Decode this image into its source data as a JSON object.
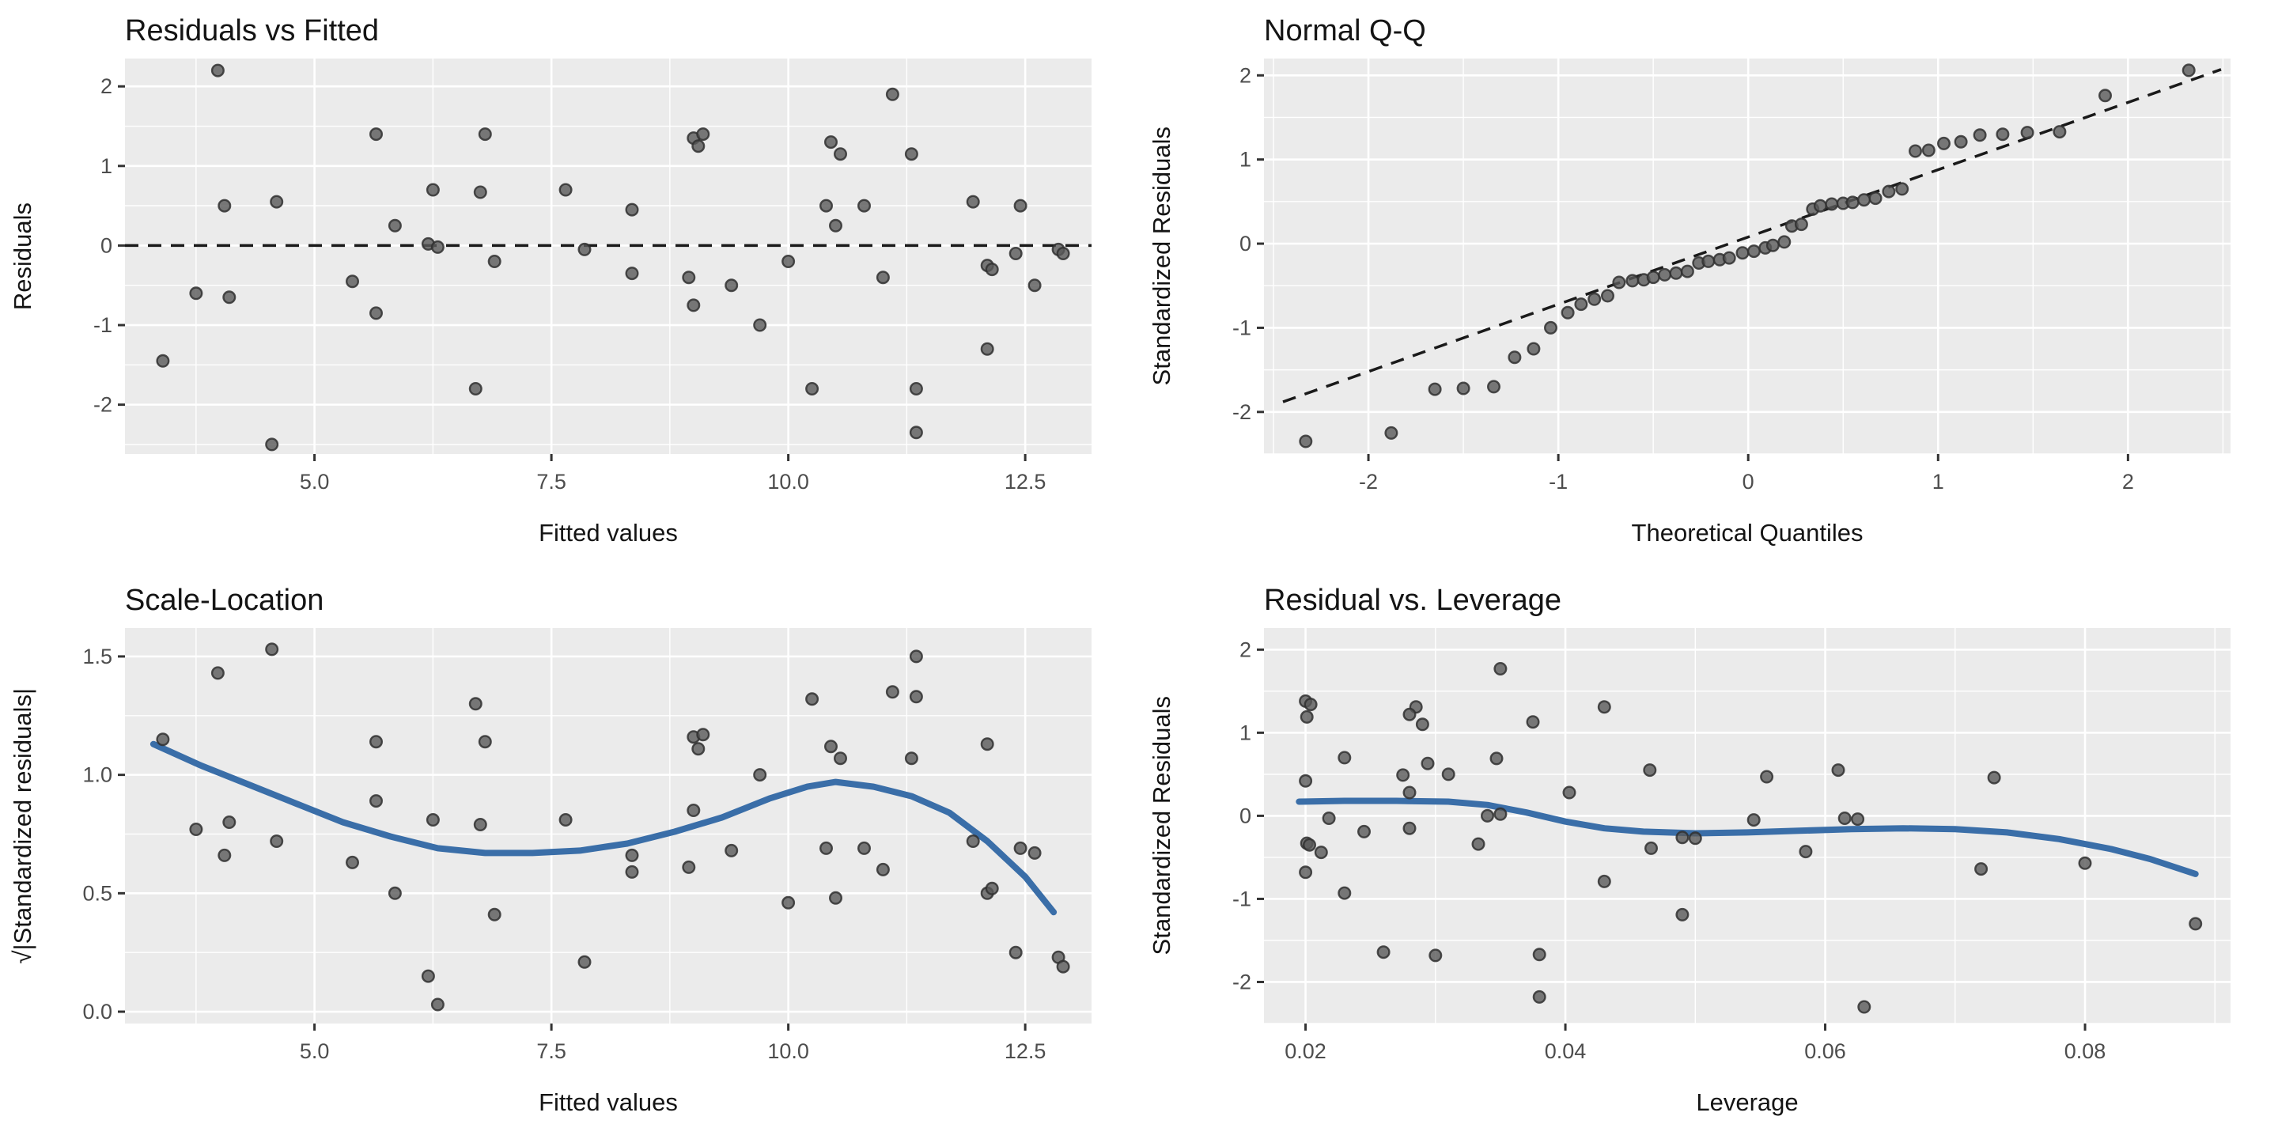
{
  "style": {
    "page_bg": "#ffffff",
    "panel_bg": "#EBEBEB",
    "grid_major_color": "#FFFFFF",
    "grid_minor_color": "#FFFFFF",
    "point_fill": "#595959",
    "point_stroke": "#303030",
    "smooth_color": "#3A6EA8",
    "dashed_line_color": "#1a1a1a",
    "tick_label_color": "#4d4d4d",
    "tick_mark_color": "#333333",
    "title_color": "#141414"
  },
  "chart_data": [
    {
      "type": "scatter",
      "title": "Residuals vs Fitted",
      "xlabel": "Fitted values",
      "ylabel": "Residuals",
      "xlim": [
        3.0,
        13.2
      ],
      "ylim": [
        -2.62,
        2.35
      ],
      "xticks": [
        5.0,
        7.5,
        10.0,
        12.5
      ],
      "xtick_labels": [
        "5.0",
        "7.5",
        "10.0",
        "12.5"
      ],
      "yticks": [
        -2,
        -1,
        0,
        1,
        2
      ],
      "ytick_labels": [
        "-2",
        "-1",
        "0",
        "1",
        "2"
      ],
      "x_minor": [
        3.75,
        6.25,
        8.75,
        11.25
      ],
      "y_minor": [
        -2.5,
        -1.5,
        -0.5,
        0.5,
        1.5
      ],
      "hline": {
        "y": 0,
        "style": "dashed"
      },
      "points": [
        [
          3.4,
          -1.45
        ],
        [
          3.75,
          -0.6
        ],
        [
          3.98,
          2.2
        ],
        [
          4.05,
          0.5
        ],
        [
          4.1,
          -0.65
        ],
        [
          4.55,
          -2.5
        ],
        [
          4.6,
          0.55
        ],
        [
          5.4,
          -0.45
        ],
        [
          5.65,
          1.4
        ],
        [
          5.65,
          -0.85
        ],
        [
          5.85,
          0.25
        ],
        [
          6.2,
          0.02
        ],
        [
          6.3,
          -0.02
        ],
        [
          6.25,
          0.7
        ],
        [
          6.75,
          0.67
        ],
        [
          6.8,
          1.4
        ],
        [
          6.9,
          -0.2
        ],
        [
          6.7,
          -1.8
        ],
        [
          7.65,
          0.7
        ],
        [
          7.85,
          -0.05
        ],
        [
          8.35,
          0.45
        ],
        [
          8.35,
          -0.35
        ],
        [
          8.95,
          -0.4
        ],
        [
          9.0,
          1.35
        ],
        [
          9.05,
          1.25
        ],
        [
          9.1,
          1.4
        ],
        [
          9.0,
          -0.75
        ],
        [
          9.4,
          -0.5
        ],
        [
          9.7,
          -1.0
        ],
        [
          10.0,
          -0.2
        ],
        [
          10.25,
          -1.8
        ],
        [
          10.4,
          0.5
        ],
        [
          10.45,
          1.3
        ],
        [
          10.5,
          0.25
        ],
        [
          10.55,
          1.15
        ],
        [
          10.8,
          0.5
        ],
        [
          11.0,
          -0.4
        ],
        [
          11.1,
          1.9
        ],
        [
          11.3,
          1.15
        ],
        [
          11.35,
          -1.8
        ],
        [
          11.35,
          -2.35
        ],
        [
          11.95,
          0.55
        ],
        [
          12.1,
          -0.25
        ],
        [
          12.15,
          -0.3
        ],
        [
          12.1,
          -1.3
        ],
        [
          12.4,
          -0.1
        ],
        [
          12.45,
          0.5
        ],
        [
          12.6,
          -0.5
        ],
        [
          12.85,
          -0.05
        ],
        [
          12.9,
          -0.1
        ]
      ]
    },
    {
      "type": "scatter",
      "title": "Normal Q-Q",
      "xlabel": "Theoretical Quantiles",
      "ylabel": "Standardized Residuals",
      "xlim": [
        -2.55,
        2.54
      ],
      "ylim": [
        -2.5,
        2.2
      ],
      "xticks": [
        -2,
        -1,
        0,
        1,
        2
      ],
      "xtick_labels": [
        "-2",
        "-1",
        "0",
        "1",
        "2"
      ],
      "yticks": [
        -2,
        -1,
        0,
        1,
        2
      ],
      "ytick_labels": [
        "-2",
        "-1",
        "0",
        "1",
        "2"
      ],
      "x_minor": [
        -2.5,
        -1.5,
        -0.5,
        0.5,
        1.5,
        2.5
      ],
      "y_minor": [
        -2.5,
        -1.5,
        -0.5,
        0.5,
        1.5
      ],
      "qq_line": {
        "x1": -2.45,
        "y1": -1.88,
        "x2": 2.49,
        "y2": 2.07
      },
      "points": [
        [
          -2.33,
          -2.35
        ],
        [
          -1.88,
          -2.25
        ],
        [
          -1.65,
          -1.73
        ],
        [
          -1.5,
          -1.72
        ],
        [
          -1.34,
          -1.7
        ],
        [
          -1.23,
          -1.35
        ],
        [
          -1.13,
          -1.25
        ],
        [
          -1.04,
          -1.0
        ],
        [
          -0.95,
          -0.82
        ],
        [
          -0.88,
          -0.72
        ],
        [
          -0.81,
          -0.66
        ],
        [
          -0.74,
          -0.62
        ],
        [
          -0.68,
          -0.46
        ],
        [
          -0.61,
          -0.44
        ],
        [
          -0.55,
          -0.43
        ],
        [
          -0.5,
          -0.4
        ],
        [
          -0.44,
          -0.37
        ],
        [
          -0.38,
          -0.35
        ],
        [
          -0.32,
          -0.33
        ],
        [
          -0.26,
          -0.23
        ],
        [
          -0.21,
          -0.21
        ],
        [
          -0.15,
          -0.19
        ],
        [
          -0.1,
          -0.17
        ],
        [
          -0.03,
          -0.11
        ],
        [
          0.03,
          -0.09
        ],
        [
          0.09,
          -0.05
        ],
        [
          0.13,
          -0.02
        ],
        [
          0.19,
          0.02
        ],
        [
          0.23,
          0.21
        ],
        [
          0.28,
          0.23
        ],
        [
          0.34,
          0.41
        ],
        [
          0.38,
          0.45
        ],
        [
          0.44,
          0.47
        ],
        [
          0.5,
          0.48
        ],
        [
          0.55,
          0.49
        ],
        [
          0.61,
          0.52
        ],
        [
          0.67,
          0.54
        ],
        [
          0.74,
          0.62
        ],
        [
          0.81,
          0.65
        ],
        [
          0.88,
          1.1
        ],
        [
          0.95,
          1.11
        ],
        [
          1.03,
          1.19
        ],
        [
          1.12,
          1.21
        ],
        [
          1.22,
          1.29
        ],
        [
          1.34,
          1.3
        ],
        [
          1.47,
          1.32
        ],
        [
          1.64,
          1.33
        ],
        [
          1.88,
          1.76
        ],
        [
          2.32,
          2.06
        ]
      ]
    },
    {
      "type": "scatter",
      "title": "Scale-Location",
      "xlabel": "Fitted values",
      "ylabel": "√|Standardized residuals|",
      "xlim": [
        3.0,
        13.2
      ],
      "ylim": [
        -0.05,
        1.62
      ],
      "xticks": [
        5.0,
        7.5,
        10.0,
        12.5
      ],
      "xtick_labels": [
        "5.0",
        "7.5",
        "10.0",
        "12.5"
      ],
      "yticks": [
        0.0,
        0.5,
        1.0,
        1.5
      ],
      "ytick_labels": [
        "0.0",
        "0.5",
        "1.0",
        "1.5"
      ],
      "x_minor": [
        3.75,
        6.25,
        8.75,
        11.25
      ],
      "y_minor": [
        0.25,
        0.75,
        1.25
      ],
      "smooth": [
        [
          3.3,
          1.13
        ],
        [
          3.8,
          1.04
        ],
        [
          4.3,
          0.96
        ],
        [
          4.8,
          0.88
        ],
        [
          5.3,
          0.8
        ],
        [
          5.8,
          0.74
        ],
        [
          6.3,
          0.69
        ],
        [
          6.8,
          0.67
        ],
        [
          7.3,
          0.67
        ],
        [
          7.8,
          0.68
        ],
        [
          8.3,
          0.71
        ],
        [
          8.8,
          0.76
        ],
        [
          9.3,
          0.82
        ],
        [
          9.8,
          0.9
        ],
        [
          10.2,
          0.95
        ],
        [
          10.5,
          0.97
        ],
        [
          10.9,
          0.95
        ],
        [
          11.3,
          0.91
        ],
        [
          11.7,
          0.84
        ],
        [
          12.1,
          0.72
        ],
        [
          12.5,
          0.57
        ],
        [
          12.8,
          0.42
        ]
      ],
      "points": [
        [
          3.4,
          1.15
        ],
        [
          3.75,
          0.77
        ],
        [
          3.98,
          1.43
        ],
        [
          4.05,
          0.66
        ],
        [
          4.1,
          0.8
        ],
        [
          4.55,
          1.53
        ],
        [
          4.6,
          0.72
        ],
        [
          5.4,
          0.63
        ],
        [
          5.65,
          1.14
        ],
        [
          5.65,
          0.89
        ],
        [
          5.85,
          0.5
        ],
        [
          6.2,
          0.15
        ],
        [
          6.3,
          0.03
        ],
        [
          6.25,
          0.81
        ],
        [
          6.75,
          0.79
        ],
        [
          6.8,
          1.14
        ],
        [
          6.9,
          0.41
        ],
        [
          6.7,
          1.3
        ],
        [
          7.65,
          0.81
        ],
        [
          7.85,
          0.21
        ],
        [
          8.35,
          0.66
        ],
        [
          8.35,
          0.59
        ],
        [
          8.95,
          0.61
        ],
        [
          9.0,
          1.16
        ],
        [
          9.05,
          1.11
        ],
        [
          9.1,
          1.17
        ],
        [
          9.0,
          0.85
        ],
        [
          9.4,
          0.68
        ],
        [
          9.7,
          1.0
        ],
        [
          10.0,
          0.46
        ],
        [
          10.25,
          1.32
        ],
        [
          10.4,
          0.69
        ],
        [
          10.45,
          1.12
        ],
        [
          10.5,
          0.48
        ],
        [
          10.55,
          1.07
        ],
        [
          10.8,
          0.69
        ],
        [
          11.0,
          0.6
        ],
        [
          11.1,
          1.35
        ],
        [
          11.3,
          1.07
        ],
        [
          11.35,
          1.33
        ],
        [
          11.35,
          1.5
        ],
        [
          11.95,
          0.72
        ],
        [
          12.1,
          0.5
        ],
        [
          12.15,
          0.52
        ],
        [
          12.1,
          1.13
        ],
        [
          12.4,
          0.25
        ],
        [
          12.45,
          0.69
        ],
        [
          12.6,
          0.67
        ],
        [
          12.85,
          0.23
        ],
        [
          12.9,
          0.19
        ]
      ]
    },
    {
      "type": "scatter",
      "title": "Residual vs. Leverage",
      "xlabel": "Leverage",
      "ylabel": "Standardized Residuals",
      "xlim": [
        0.0168,
        0.0912
      ],
      "ylim": [
        -2.5,
        2.26
      ],
      "xticks": [
        0.02,
        0.04,
        0.06,
        0.08
      ],
      "xtick_labels": [
        "0.02",
        "0.04",
        "0.06",
        "0.08"
      ],
      "yticks": [
        -2,
        -1,
        0,
        1,
        2
      ],
      "ytick_labels": [
        "-2",
        "-1",
        "0",
        "1",
        "2"
      ],
      "x_minor": [
        0.03,
        0.05,
        0.07,
        0.09
      ],
      "y_minor": [
        -2.5,
        -1.5,
        -0.5,
        0.5,
        1.5
      ],
      "smooth": [
        [
          0.0195,
          0.17
        ],
        [
          0.023,
          0.18
        ],
        [
          0.027,
          0.18
        ],
        [
          0.031,
          0.17
        ],
        [
          0.034,
          0.13
        ],
        [
          0.037,
          0.04
        ],
        [
          0.04,
          -0.07
        ],
        [
          0.043,
          -0.15
        ],
        [
          0.046,
          -0.19
        ],
        [
          0.05,
          -0.21
        ],
        [
          0.054,
          -0.2
        ],
        [
          0.058,
          -0.18
        ],
        [
          0.062,
          -0.16
        ],
        [
          0.066,
          -0.15
        ],
        [
          0.07,
          -0.16
        ],
        [
          0.074,
          -0.2
        ],
        [
          0.078,
          -0.28
        ],
        [
          0.082,
          -0.4
        ],
        [
          0.085,
          -0.52
        ],
        [
          0.0885,
          -0.7
        ]
      ],
      "points": [
        [
          0.02,
          1.38
        ],
        [
          0.0204,
          1.34
        ],
        [
          0.0201,
          1.19
        ],
        [
          0.0285,
          1.31
        ],
        [
          0.028,
          1.22
        ],
        [
          0.029,
          1.1
        ],
        [
          0.035,
          1.77
        ],
        [
          0.0375,
          1.13
        ],
        [
          0.043,
          1.31
        ],
        [
          0.023,
          0.7
        ],
        [
          0.0294,
          0.63
        ],
        [
          0.031,
          0.5
        ],
        [
          0.0275,
          0.49
        ],
        [
          0.0347,
          0.69
        ],
        [
          0.02,
          0.42
        ],
        [
          0.028,
          0.28
        ],
        [
          0.0403,
          0.28
        ],
        [
          0.0465,
          0.55
        ],
        [
          0.0555,
          0.47
        ],
        [
          0.061,
          0.55
        ],
        [
          0.073,
          0.46
        ],
        [
          0.0218,
          -0.03
        ],
        [
          0.034,
          0.0
        ],
        [
          0.035,
          0.02
        ],
        [
          0.0545,
          -0.05
        ],
        [
          0.0615,
          -0.03
        ],
        [
          0.0625,
          -0.04
        ],
        [
          0.0245,
          -0.19
        ],
        [
          0.028,
          -0.15
        ],
        [
          0.0201,
          -0.33
        ],
        [
          0.0203,
          -0.35
        ],
        [
          0.0212,
          -0.44
        ],
        [
          0.0333,
          -0.34
        ],
        [
          0.0466,
          -0.39
        ],
        [
          0.049,
          -0.26
        ],
        [
          0.05,
          -0.27
        ],
        [
          0.0585,
          -0.43
        ],
        [
          0.02,
          -0.68
        ],
        [
          0.023,
          -0.93
        ],
        [
          0.043,
          -0.79
        ],
        [
          0.049,
          -1.19
        ],
        [
          0.072,
          -0.64
        ],
        [
          0.08,
          -0.57
        ],
        [
          0.0885,
          -1.3
        ],
        [
          0.026,
          -1.64
        ],
        [
          0.03,
          -1.68
        ],
        [
          0.038,
          -1.67
        ],
        [
          0.038,
          -2.18
        ],
        [
          0.063,
          -2.3
        ]
      ]
    }
  ]
}
